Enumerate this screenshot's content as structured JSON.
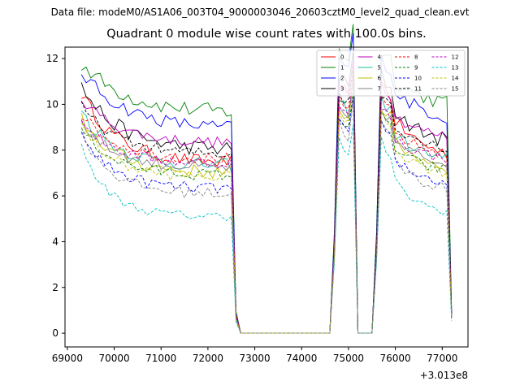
{
  "figure": {
    "suptitle": "Data file: modeM0/AS1A06_003T04_9000003046_20603cztM0_level2_quad_clean.evt",
    "title": "Quadrant 0 module wise count rates with 100.0s bins."
  },
  "chart_data": {
    "type": "line",
    "title": "Quadrant 0 module wise count rates with 100.0s bins.",
    "xlabel": "",
    "ylabel": "",
    "x_offset_label": "+3.013e8",
    "xlim": [
      68950,
      77550
    ],
    "ylim": [
      -0.6,
      12.5
    ],
    "xticks": [
      69000,
      70000,
      71000,
      72000,
      73000,
      74000,
      75000,
      76000,
      77000
    ],
    "yticks": [
      0,
      2,
      4,
      6,
      8,
      10,
      12
    ],
    "legend_position": "top-right",
    "gaps": [
      [
        72700,
        74600
      ],
      [
        75200,
        75500
      ]
    ],
    "time_range": [
      69300,
      77200
    ],
    "bin_seconds": 100,
    "series": [
      {
        "name": "0",
        "color": "#ff0000",
        "dash": "solid",
        "start": 10.5,
        "level": 7.4,
        "decay": 0.88,
        "noise": 0.3
      },
      {
        "name": "1",
        "color": "#008000",
        "dash": "solid",
        "start": 11.8,
        "level": 9.6,
        "decay": 0.9,
        "noise": 0.35
      },
      {
        "name": "2",
        "color": "#0000ff",
        "dash": "solid",
        "start": 11.4,
        "level": 8.9,
        "decay": 0.9,
        "noise": 0.3
      },
      {
        "name": "3",
        "color": "#000000",
        "dash": "solid",
        "start": 10.8,
        "level": 8.0,
        "decay": 0.88,
        "noise": 0.35
      },
      {
        "name": "4",
        "color": "#bf00bf",
        "dash": "solid",
        "start": 10.3,
        "level": 8.3,
        "decay": 0.88,
        "noise": 0.25
      },
      {
        "name": "5",
        "color": "#1abc9c",
        "dash": "solid",
        "start": 9.7,
        "level": 7.3,
        "decay": 0.87,
        "noise": 0.3
      },
      {
        "name": "6",
        "color": "#bfbf00",
        "dash": "solid",
        "start": 9.4,
        "level": 7.0,
        "decay": 0.87,
        "noise": 0.3
      },
      {
        "name": "7",
        "color": "#808080",
        "dash": "solid",
        "start": 9.2,
        "level": 7.2,
        "decay": 0.87,
        "noise": 0.25
      },
      {
        "name": "8",
        "color": "#ff0000",
        "dash": "dashed",
        "start": 9.6,
        "level": 7.6,
        "decay": 0.87,
        "noise": 0.25
      },
      {
        "name": "9",
        "color": "#008000",
        "dash": "dashed",
        "start": 9.0,
        "level": 6.9,
        "decay": 0.86,
        "noise": 0.25
      },
      {
        "name": "10",
        "color": "#0000ff",
        "dash": "dashed",
        "start": 8.7,
        "level": 6.3,
        "decay": 0.86,
        "noise": 0.25
      },
      {
        "name": "11",
        "color": "#000000",
        "dash": "dashed",
        "start": 9.9,
        "level": 7.8,
        "decay": 0.88,
        "noise": 0.25
      },
      {
        "name": "12",
        "color": "#bf00bf",
        "dash": "dashed",
        "start": 9.3,
        "level": 7.4,
        "decay": 0.87,
        "noise": 0.25
      },
      {
        "name": "13",
        "color": "#00bfbf",
        "dash": "dashed",
        "start": 8.1,
        "level": 5.1,
        "decay": 0.84,
        "noise": 0.2
      },
      {
        "name": "14",
        "color": "#bfbf00",
        "dash": "dashed",
        "start": 9.1,
        "level": 6.8,
        "decay": 0.86,
        "noise": 0.25
      },
      {
        "name": "15",
        "color": "#808080",
        "dash": "dashed",
        "start": 8.8,
        "level": 6.1,
        "decay": 0.85,
        "noise": 0.25
      }
    ]
  }
}
